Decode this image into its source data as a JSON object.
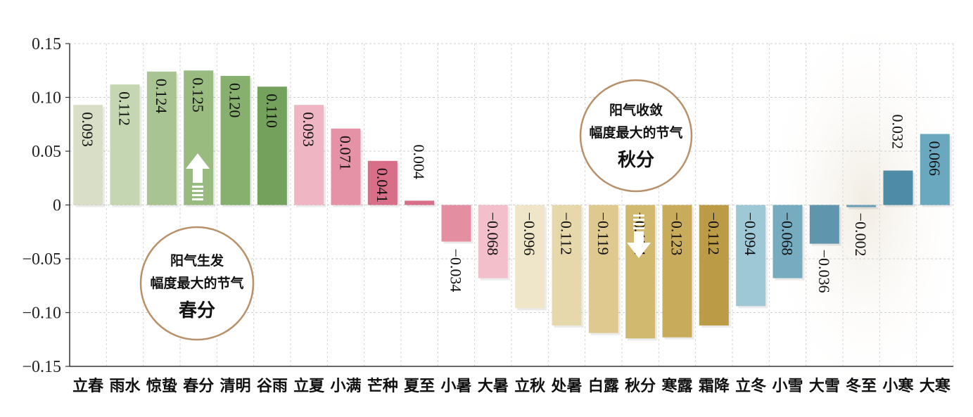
{
  "chart_data": {
    "type": "bar",
    "categories": [
      "立春",
      "雨水",
      "惊蛰",
      "春分",
      "清明",
      "谷雨",
      "立夏",
      "小满",
      "芒种",
      "夏至",
      "小暑",
      "大暑",
      "立秋",
      "处暑",
      "白露",
      "秋分",
      "寒露",
      "霜降",
      "立冬",
      "小雪",
      "大雪",
      "冬至",
      "小寒",
      "大寒"
    ],
    "values": [
      0.093,
      0.112,
      0.124,
      0.125,
      0.12,
      0.11,
      0.093,
      0.071,
      0.041,
      0.004,
      -0.034,
      -0.068,
      -0.096,
      -0.112,
      -0.119,
      -0.124,
      -0.123,
      -0.112,
      -0.094,
      -0.068,
      -0.036,
      -0.002,
      0.032,
      0.066
    ],
    "value_labels": [
      "0.093",
      "0.112",
      "0.124",
      "0.125",
      "0.120",
      "0.110",
      "0.093",
      "0.071",
      "0.041",
      "0.004",
      "−0.034",
      "−0.068",
      "−0.096",
      "−0.112",
      "−0.119",
      "−0.124",
      "−0.123",
      "−0.112",
      "−0.094",
      "−0.068",
      "−0.036",
      "−0.002",
      "0.032",
      "0.066"
    ],
    "colors": [
      "#d9dec6",
      "#c4d6b2",
      "#a9c493",
      "#99bb80",
      "#87b06e",
      "#74a15c",
      "#efb5c2",
      "#e592a6",
      "#d86e88",
      "#d86e88",
      "#e48ea2",
      "#f2bfcb",
      "#efe6c9",
      "#e6d8ab",
      "#dfc98f",
      "#d2b970",
      "#c8ab5b",
      "#bb9b45",
      "#9ec8d6",
      "#76abc0",
      "#5f95ad",
      "#6b9fb7",
      "#4d8ba6",
      "#6aa8c0"
    ],
    "ytick_labels": [
      "0.15",
      "0.10",
      "0.05",
      "0",
      "−0.05",
      "−0.10",
      "−0.15"
    ],
    "ytick_values": [
      0.15,
      0.1,
      0.05,
      0,
      -0.05,
      -0.1,
      -0.15
    ],
    "ylim": [
      -0.15,
      0.15
    ],
    "grid": true,
    "title": "",
    "xlabel": "",
    "ylabel": ""
  },
  "annotations": {
    "spring": {
      "line1": "阳气生发",
      "line2": "幅度最大的节气",
      "line3": "春分"
    },
    "autumn": {
      "line1": "阳气收敛",
      "line2": "幅度最大的节气",
      "line3": "秋分"
    },
    "up_arrow": "arrow-up-icon",
    "down_arrow": "arrow-down-icon"
  }
}
